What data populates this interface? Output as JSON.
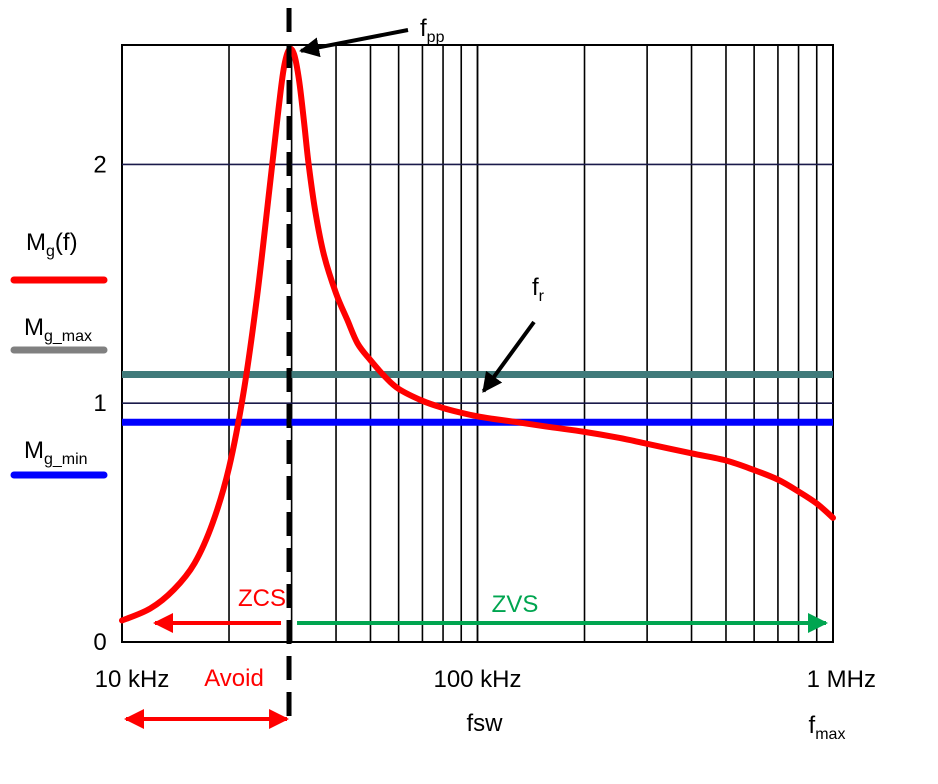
{
  "chart_data": {
    "type": "line",
    "x_scale": "log",
    "x_range_hz": [
      10000,
      1000000
    ],
    "y_range": [
      0,
      2.5
    ],
    "grid": true,
    "x_tick_labels": [
      {
        "value": 10000,
        "label": "10 kHz"
      },
      {
        "value": 100000,
        "label": "100 kHz"
      },
      {
        "value": 1000000,
        "label": "1 MHz"
      }
    ],
    "y_tick_labels": [
      {
        "value": 0,
        "label": "0"
      },
      {
        "value": 1,
        "label": "1"
      },
      {
        "value": 2,
        "label": "2"
      }
    ],
    "xlabel": "fsw",
    "series": [
      {
        "name": "Mg(f)",
        "color": "#ff0000",
        "x": [
          10000,
          12000,
          14000,
          16000,
          18000,
          20000,
          22000,
          24000,
          26000,
          27500,
          28500,
          29500,
          30500,
          31500,
          32500,
          33500,
          35000,
          37000,
          40000,
          43000,
          46000,
          50000,
          55000,
          60000,
          70000,
          80000,
          90000,
          100000,
          110000,
          130000,
          160000,
          200000,
          250000,
          300000,
          400000,
          500000,
          600000,
          700000,
          800000,
          900000,
          1000000
        ],
        "y": [
          0.09,
          0.14,
          0.22,
          0.33,
          0.5,
          0.73,
          1.05,
          1.45,
          1.9,
          2.22,
          2.4,
          2.48,
          2.46,
          2.35,
          2.18,
          2.0,
          1.8,
          1.62,
          1.46,
          1.35,
          1.25,
          1.18,
          1.11,
          1.06,
          1.01,
          0.98,
          0.96,
          0.945,
          0.935,
          0.92,
          0.9,
          0.88,
          0.855,
          0.83,
          0.79,
          0.76,
          0.72,
          0.68,
          0.63,
          0.58,
          0.52
        ]
      }
    ],
    "hlines": [
      {
        "name": "Mg_max",
        "y": 1.12,
        "color": "#407a7a"
      },
      {
        "name": "Mg_min",
        "y": 0.92,
        "color": "#0000ff"
      }
    ],
    "vline": {
      "name": "f_pp",
      "x": 29500,
      "style": "dashed",
      "color": "#000000"
    },
    "regions": [
      {
        "label": "ZCS",
        "from": 10000,
        "to": 29500,
        "color": "#ff0000"
      },
      {
        "label": "ZVS",
        "from": 29500,
        "to": 1000000,
        "color": "#00a550"
      },
      {
        "label": "Avoid",
        "from": 10000,
        "to": 29500,
        "color": "#ff0000"
      }
    ],
    "annotations": [
      {
        "label_main": "f",
        "label_sub": "pp",
        "target_x": 29500,
        "target_y": 2.48
      },
      {
        "label_main": "f",
        "label_sub": "r",
        "target_x": 100000,
        "target_y": 1.0
      },
      {
        "label_main": "f",
        "label_sub": "max"
      }
    ],
    "legend": [
      {
        "main": "M",
        "sub": "g",
        "suffix": "(f)",
        "color": "#ff0000"
      },
      {
        "main": "M",
        "sub": "g_max",
        "suffix": "",
        "color": "#808080"
      },
      {
        "main": "M",
        "sub": "g_min",
        "suffix": "",
        "color": "#0000ff"
      }
    ]
  }
}
